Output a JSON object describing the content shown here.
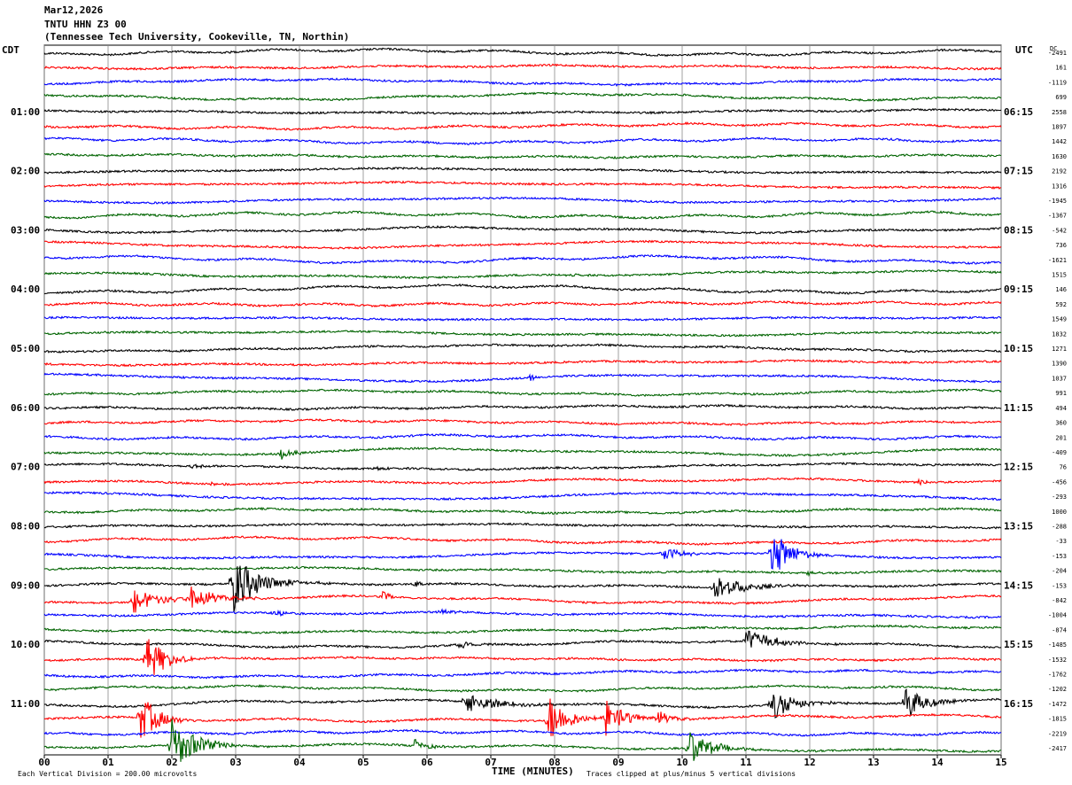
{
  "header": {
    "date": "Mar12,2026",
    "station": "TNTU HHN Z3 00",
    "location": "(Tennessee Tech University, Cookeville, TN, Northin)"
  },
  "labels": {
    "left_tz": "CDT",
    "right_tz": "UTC",
    "dc": "DC",
    "xlabel": "TIME (MINUTES)",
    "scale_note": "Each Vertical Division =  200.00 microvolts",
    "clip_note": "Traces clipped at plus/minus 5 vertical divisions"
  },
  "chart_data": {
    "type": "line",
    "title": "TNTU HHN Z3 00",
    "xlabel": "TIME (MINUTES)",
    "xlim": [
      0,
      15
    ],
    "x_ticks": [
      "00",
      "01",
      "02",
      "03",
      "04",
      "05",
      "06",
      "07",
      "08",
      "09",
      "10",
      "11",
      "12",
      "13",
      "14",
      "15"
    ],
    "grid": true,
    "trace_colors": [
      "#000000",
      "#ff0000",
      "#0000ff",
      "#006400"
    ],
    "cdt_hour_labels": [
      "01:00",
      "02:00",
      "03:00",
      "04:00",
      "05:00",
      "06:00",
      "07:00",
      "08:00",
      "09:00",
      "10:00",
      "11:00"
    ],
    "utc_hour_labels": [
      "06:15",
      "07:15",
      "08:15",
      "09:15",
      "10:15",
      "11:15",
      "12:15",
      "13:15",
      "14:15",
      "15:15",
      "16:15"
    ],
    "dc_offsets": [
      -2491,
      161,
      -1119,
      699,
      2558,
      1897,
      1442,
      1630,
      2192,
      1316,
      -1945,
      -1367,
      -542,
      736,
      -1621,
      1515,
      146,
      592,
      1549,
      1832,
      1271,
      1390,
      1037,
      991,
      494,
      360,
      201,
      -409,
      76,
      -456,
      -293,
      1000,
      -288,
      -33,
      -153,
      -204,
      -153,
      -842,
      -1004,
      -874,
      -1485,
      -1532,
      -1762,
      -1202,
      -1472,
      -1815,
      -2219,
      -2417
    ],
    "events": [
      {
        "trace": 15,
        "minute": 8.2,
        "amp": 2,
        "duration": 0.25
      },
      {
        "trace": 22,
        "minute": 7.6,
        "amp": 6,
        "duration": 0.2
      },
      {
        "trace": 27,
        "minute": 3.7,
        "amp": 7,
        "duration": 0.4
      },
      {
        "trace": 28,
        "minute": 2.3,
        "amp": 3,
        "duration": 0.4
      },
      {
        "trace": 28,
        "minute": 5.2,
        "amp": 3,
        "duration": 0.3
      },
      {
        "trace": 29,
        "minute": 2.6,
        "amp": 3,
        "duration": 0.3
      },
      {
        "trace": 29,
        "minute": 13.7,
        "amp": 4,
        "duration": 0.3
      },
      {
        "trace": 34,
        "minute": 9.7,
        "amp": 10,
        "duration": 0.5
      },
      {
        "trace": 34,
        "minute": 11.4,
        "amp": 30,
        "duration": 0.6
      },
      {
        "trace": 35,
        "minute": 11.9,
        "amp": 4,
        "duration": 0.3
      },
      {
        "trace": 36,
        "minute": 2.95,
        "amp": 35,
        "duration": 0.8
      },
      {
        "trace": 36,
        "minute": 5.8,
        "amp": 5,
        "duration": 0.3
      },
      {
        "trace": 36,
        "minute": 10.5,
        "amp": 15,
        "duration": 0.9
      },
      {
        "trace": 37,
        "minute": 1.4,
        "amp": 15,
        "duration": 0.8
      },
      {
        "trace": 37,
        "minute": 2.3,
        "amp": 15,
        "duration": 0.8
      },
      {
        "trace": 37,
        "minute": 5.3,
        "amp": 6,
        "duration": 0.3
      },
      {
        "trace": 38,
        "minute": 3.6,
        "amp": 7,
        "duration": 0.3
      },
      {
        "trace": 38,
        "minute": 6.2,
        "amp": 5,
        "duration": 0.3
      },
      {
        "trace": 40,
        "minute": 11.0,
        "amp": 14,
        "duration": 0.9
      },
      {
        "trace": 40,
        "minute": 6.5,
        "amp": 4,
        "duration": 0.4
      },
      {
        "trace": 41,
        "minute": 1.6,
        "amp": 28,
        "duration": 0.6
      },
      {
        "trace": 44,
        "minute": 6.6,
        "amp": 14,
        "duration": 0.9
      },
      {
        "trace": 44,
        "minute": 11.4,
        "amp": 18,
        "duration": 0.8
      },
      {
        "trace": 44,
        "minute": 13.5,
        "amp": 22,
        "duration": 0.6
      },
      {
        "trace": 45,
        "minute": 1.5,
        "amp": 28,
        "duration": 0.6
      },
      {
        "trace": 45,
        "minute": 7.9,
        "amp": 30,
        "duration": 0.6
      },
      {
        "trace": 45,
        "minute": 8.8,
        "amp": 22,
        "duration": 0.6
      },
      {
        "trace": 45,
        "minute": 9.6,
        "amp": 10,
        "duration": 0.5
      },
      {
        "trace": 47,
        "minute": 2.0,
        "amp": 30,
        "duration": 0.8
      },
      {
        "trace": 47,
        "minute": 10.1,
        "amp": 22,
        "duration": 0.7
      },
      {
        "trace": 47,
        "minute": 5.8,
        "amp": 8,
        "duration": 0.4
      }
    ]
  }
}
